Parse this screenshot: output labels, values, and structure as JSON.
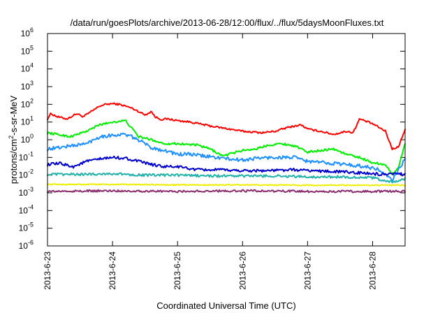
{
  "chart_data": {
    "type": "line",
    "title": "/data/run/goesPlots/archive/2013-06-28/12:00/flux/../flux/5daysMoonFluxes.txt",
    "xlabel": "Coordinated Universal Time (UTC)",
    "ylabel": "protons/cm²-s-sr-MeV",
    "yscale": "log",
    "ylim": [
      1e-06,
      1000000.0
    ],
    "xlim": [
      0,
      5.5
    ],
    "x_ticks": [
      {
        "x": 0,
        "label": "2013-6-23"
      },
      {
        "x": 1,
        "label": "2013-6-24"
      },
      {
        "x": 2,
        "label": "2013-6-25"
      },
      {
        "x": 3,
        "label": "2013-6-26"
      },
      {
        "x": 4,
        "label": "2013-6-27"
      },
      {
        "x": 5,
        "label": "2013-6-28"
      }
    ],
    "y_ticks": [
      {
        "exp": -6,
        "base": "10",
        "sup": "-6"
      },
      {
        "exp": -5,
        "base": "10",
        "sup": "-5"
      },
      {
        "exp": -4,
        "base": "10",
        "sup": "-4"
      },
      {
        "exp": -3,
        "base": "10",
        "sup": "-3"
      },
      {
        "exp": -2,
        "base": "10",
        "sup": "-2"
      },
      {
        "exp": -1,
        "base": "10",
        "sup": "-1"
      },
      {
        "exp": 0,
        "base": "10",
        "sup": "0"
      },
      {
        "exp": 1,
        "base": "10",
        "sup": "1"
      },
      {
        "exp": 2,
        "base": "10",
        "sup": "2"
      },
      {
        "exp": 3,
        "base": "10",
        "sup": "3"
      },
      {
        "exp": 4,
        "base": "10",
        "sup": "4"
      },
      {
        "exp": 5,
        "base": "10",
        "sup": "5"
      },
      {
        "exp": 6,
        "base": "10",
        "sup": "6"
      }
    ],
    "grid": false,
    "series": [
      {
        "color": "#ff0000",
        "jitter": 0.05,
        "x": [
          0,
          0.05,
          0.15,
          0.3,
          0.45,
          0.55,
          0.7,
          0.8,
          0.9,
          1.0,
          1.1,
          1.2,
          1.3,
          1.4,
          1.5,
          1.6,
          1.65,
          1.75,
          1.85,
          2.0,
          2.2,
          2.5,
          2.8,
          3.0,
          3.3,
          3.5,
          3.7,
          3.9,
          4.0,
          4.2,
          4.4,
          4.6,
          4.7,
          4.8,
          5.0,
          5.2,
          5.3,
          5.4,
          5.5
        ],
        "y": [
          15,
          30,
          20,
          15,
          30,
          20,
          45,
          80,
          100,
          110,
          100,
          80,
          60,
          40,
          25,
          40,
          20,
          14,
          15,
          12,
          10,
          6,
          4,
          3,
          2.5,
          3,
          5,
          7,
          4,
          3,
          2,
          3,
          2.5,
          15,
          8,
          3,
          0.3,
          0.4,
          4
        ]
      },
      {
        "color": "#00ee00",
        "jitter": 0.06,
        "x": [
          0,
          0.15,
          0.35,
          0.6,
          0.8,
          1.0,
          1.2,
          1.4,
          1.6,
          1.8,
          2.0,
          2.3,
          2.5,
          2.7,
          2.9,
          3.0,
          3.2,
          3.4,
          3.6,
          3.8,
          4.0,
          4.2,
          4.4,
          4.6,
          4.8,
          5.0,
          5.2,
          5.3,
          5.4,
          5.5
        ],
        "y": [
          2.5,
          2,
          1.5,
          3,
          7,
          10,
          12,
          1.5,
          1,
          0.6,
          0.6,
          0.5,
          0.3,
          0.12,
          0.2,
          0.25,
          0.3,
          0.5,
          0.6,
          0.45,
          0.2,
          0.25,
          0.3,
          0.15,
          0.1,
          0.05,
          0.04,
          0.01,
          0.03,
          0.6
        ]
      },
      {
        "color": "#1e90ff",
        "jitter": 0.1,
        "x": [
          0,
          0.15,
          0.35,
          0.6,
          0.8,
          1.0,
          1.2,
          1.4,
          1.6,
          1.8,
          2.0,
          2.2,
          2.4,
          2.6,
          2.8,
          3.0,
          3.2,
          3.5,
          3.8,
          4.0,
          4.3,
          4.6,
          4.9,
          5.1,
          5.3,
          5.5
        ],
        "y": [
          0.3,
          0.35,
          0.45,
          0.6,
          1.5,
          1.8,
          2,
          1,
          0.35,
          0.25,
          0.15,
          0.15,
          0.12,
          0.1,
          0.08,
          0.07,
          0.09,
          0.1,
          0.1,
          0.06,
          0.05,
          0.04,
          0.03,
          0.02,
          0.005,
          0.08
        ]
      },
      {
        "color": "#0000cc",
        "jitter": 0.08,
        "x": [
          0,
          0.2,
          0.4,
          0.6,
          0.8,
          1.0,
          1.2,
          1.4,
          1.6,
          1.8,
          2.0,
          2.3,
          2.6,
          3.0,
          3.4,
          3.8,
          4.2,
          4.6,
          5.0,
          5.2,
          5.35,
          5.5
        ],
        "y": [
          0.04,
          0.045,
          0.03,
          0.06,
          0.08,
          0.1,
          0.09,
          0.06,
          0.04,
          0.03,
          0.03,
          0.02,
          0.02,
          0.018,
          0.018,
          0.02,
          0.017,
          0.015,
          0.012,
          0.01,
          0.012,
          0.011
        ]
      },
      {
        "color": "#20b2aa",
        "jitter": 0.07,
        "x": [
          0,
          0.5,
          1.0,
          1.5,
          2.0,
          2.5,
          3.0,
          3.5,
          4.0,
          4.5,
          5.0,
          5.3,
          5.5
        ],
        "y": [
          0.011,
          0.011,
          0.012,
          0.01,
          0.01,
          0.009,
          0.009,
          0.009,
          0.008,
          0.008,
          0.007,
          0.004,
          0.006
        ]
      },
      {
        "color": "#eeee00",
        "jitter": 0.03,
        "x": [
          0,
          1.0,
          2.0,
          3.0,
          4.0,
          5.0,
          5.5
        ],
        "y": [
          0.003,
          0.003,
          0.0028,
          0.0028,
          0.0027,
          0.0027,
          0.0027
        ]
      },
      {
        "color": "#8b2c6e",
        "jitter": 0.06,
        "x": [
          0,
          1.0,
          2.0,
          3.0,
          4.0,
          5.0,
          5.5
        ],
        "y": [
          0.0012,
          0.0013,
          0.0012,
          0.0013,
          0.0012,
          0.0012,
          0.0012
        ]
      }
    ]
  }
}
